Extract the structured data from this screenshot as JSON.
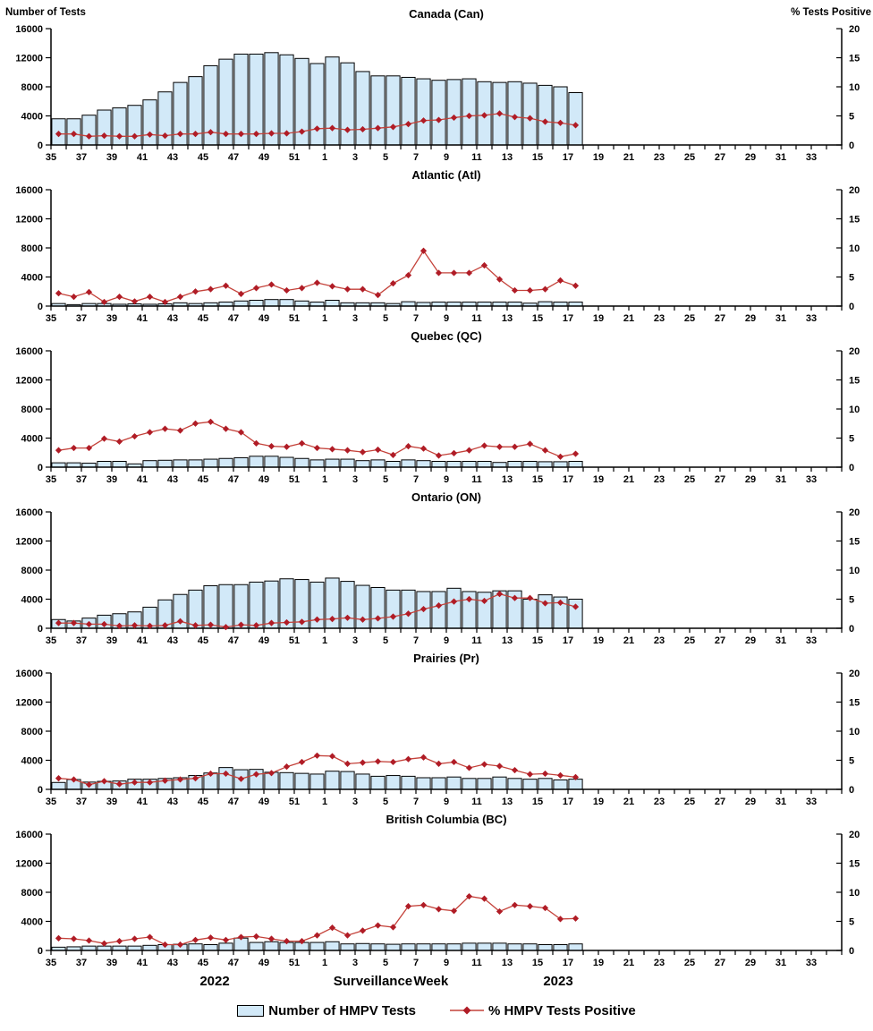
{
  "axis_titles": {
    "left": "Number of Tests",
    "right": "% Tests Positive"
  },
  "footer": {
    "year_left": "2022",
    "axis_label": "Surveillance Week",
    "year_right": "2023"
  },
  "legend": {
    "tests_label": "Number of HMPV Tests",
    "positive_label": "% HMPV Tests Positive"
  },
  "colors": {
    "bar_fill": "#d2e9f8",
    "bar_stroke": "#000000",
    "line": "#c4423a",
    "marker": "#b01c26",
    "axis": "#000000"
  },
  "axes": {
    "left_ticks": [
      "0",
      "4000",
      "8000",
      "12000",
      "16000"
    ],
    "right_ticks": [
      "0",
      "5",
      "10",
      "15",
      "20"
    ],
    "left_range": [
      0,
      16000
    ],
    "right_range": [
      0,
      20
    ],
    "x_tick_labels": [
      "35",
      "37",
      "39",
      "41",
      "43",
      "45",
      "47",
      "49",
      "51",
      "1",
      "3",
      "5",
      "7",
      "9",
      "11",
      "13",
      "15",
      "17",
      "19",
      "21",
      "23",
      "25",
      "27",
      "29",
      "31",
      "33"
    ],
    "x_axis_weeks_span": "week 35 of 2022 through week 34 of 2023",
    "grid": "off",
    "legend_position": "bottom center"
  },
  "chart_data": {
    "type": "bar+line combo, 6 stacked panels, dual y-axes",
    "x_label": "Surveillance Week",
    "left_y_label": "Number of Tests",
    "right_y_label": "% Tests Positive",
    "surveillance_weeks": [
      35,
      36,
      37,
      38,
      39,
      40,
      41,
      42,
      43,
      44,
      45,
      46,
      47,
      48,
      49,
      50,
      51,
      52,
      1,
      2,
      3,
      4,
      5,
      6,
      7,
      8,
      9,
      10,
      11,
      12,
      13,
      14,
      15,
      16,
      17
    ],
    "series_names": [
      "Number of HMPV Tests",
      "% HMPV Tests Positive"
    ],
    "panels": [
      {
        "id": "can",
        "title": "Canada (Can)",
        "tests": [
          3600,
          3600,
          4100,
          4800,
          5100,
          5450,
          6200,
          7300,
          8600,
          9400,
          10900,
          11800,
          12500,
          12500,
          12700,
          12400,
          11900,
          11200,
          12100,
          11300,
          10100,
          9500,
          9500,
          9300,
          9100,
          8900,
          9000,
          9100,
          8700,
          8600,
          8700,
          8500,
          8200,
          8000,
          7200
        ],
        "pct_positive": [
          1.9,
          1.9,
          1.5,
          1.6,
          1.5,
          1.5,
          1.8,
          1.6,
          1.9,
          1.9,
          2.2,
          1.9,
          1.9,
          1.9,
          2.0,
          2.0,
          2.3,
          2.8,
          2.9,
          2.6,
          2.7,
          2.9,
          3.1,
          3.6,
          4.2,
          4.3,
          4.7,
          5.0,
          5.1,
          5.4,
          4.8,
          4.6,
          4.0,
          3.8,
          3.4
        ]
      },
      {
        "id": "atl",
        "title": "Atlantic (Atl)",
        "tests": [
          350,
          200,
          350,
          350,
          250,
          300,
          250,
          300,
          450,
          350,
          450,
          550,
          700,
          800,
          900,
          900,
          700,
          550,
          800,
          450,
          450,
          450,
          350,
          600,
          500,
          550,
          550,
          550,
          550,
          550,
          550,
          400,
          600,
          550,
          550
        ],
        "pct_positive": [
          2.2,
          1.6,
          2.4,
          0.7,
          1.6,
          0.8,
          1.6,
          0.7,
          1.6,
          2.5,
          2.9,
          3.5,
          2.1,
          3.1,
          3.7,
          2.7,
          3.1,
          4.0,
          3.4,
          2.9,
          2.9,
          1.9,
          3.9,
          5.3,
          9.5,
          5.7,
          5.7,
          5.7,
          7.0,
          4.6,
          2.7,
          2.7,
          2.9,
          4.4,
          3.5
        ]
      },
      {
        "id": "qc",
        "title": "Quebec (QC)",
        "tests": [
          600,
          600,
          550,
          800,
          800,
          450,
          900,
          950,
          1000,
          1000,
          1100,
          1200,
          1300,
          1500,
          1500,
          1350,
          1200,
          1000,
          1100,
          1100,
          900,
          1000,
          800,
          1000,
          900,
          800,
          800,
          800,
          800,
          650,
          800,
          800,
          750,
          750,
          800
        ],
        "pct_positive": [
          2.9,
          3.3,
          3.3,
          4.9,
          4.4,
          5.3,
          6.0,
          6.6,
          6.3,
          7.5,
          7.8,
          6.6,
          6.0,
          4.1,
          3.6,
          3.5,
          4.1,
          3.3,
          3.1,
          2.9,
          2.6,
          3.0,
          2.1,
          3.6,
          3.2,
          2.0,
          2.4,
          2.9,
          3.7,
          3.5,
          3.5,
          4.0,
          2.9,
          1.8,
          2.3
        ]
      },
      {
        "id": "on",
        "title": "Ontario (ON)",
        "tests": [
          1200,
          1000,
          1400,
          1800,
          2000,
          2250,
          2900,
          3900,
          4650,
          5250,
          5850,
          6000,
          6000,
          6350,
          6500,
          6800,
          6700,
          6350,
          6900,
          6450,
          5900,
          5600,
          5250,
          5250,
          5050,
          5050,
          5500,
          5050,
          4950,
          5150,
          5150,
          4000,
          4600,
          4300,
          4000
        ],
        "pct_positive": [
          0.9,
          0.9,
          0.7,
          0.7,
          0.4,
          0.5,
          0.4,
          0.5,
          1.2,
          0.5,
          0.6,
          0.2,
          0.6,
          0.5,
          0.9,
          1.0,
          1.1,
          1.5,
          1.6,
          1.8,
          1.5,
          1.7,
          2.0,
          2.5,
          3.3,
          3.9,
          4.6,
          5.0,
          4.7,
          5.9,
          5.2,
          5.2,
          4.3,
          4.4,
          3.7
        ]
      },
      {
        "id": "pr",
        "title": "Prairies (Pr)",
        "tests": [
          950,
          1350,
          1000,
          1100,
          1150,
          1400,
          1400,
          1500,
          1600,
          1900,
          2250,
          3000,
          2700,
          2750,
          2350,
          2300,
          2200,
          2100,
          2500,
          2450,
          2100,
          1800,
          1900,
          1800,
          1600,
          1600,
          1700,
          1500,
          1500,
          1700,
          1500,
          1400,
          1500,
          1300,
          1400
        ],
        "pct_positive": [
          1.9,
          1.7,
          0.8,
          1.4,
          0.9,
          1.2,
          1.2,
          1.5,
          1.7,
          1.9,
          2.7,
          2.7,
          1.8,
          2.6,
          2.8,
          3.9,
          4.7,
          5.8,
          5.7,
          4.4,
          4.6,
          4.8,
          4.7,
          5.2,
          5.5,
          4.4,
          4.7,
          3.7,
          4.3,
          4.0,
          3.3,
          2.6,
          2.7,
          2.4,
          2.1
        ]
      },
      {
        "id": "bc",
        "title": "British Columbia (BC)",
        "tests": [
          450,
          500,
          600,
          600,
          600,
          600,
          700,
          800,
          850,
          900,
          800,
          1000,
          1700,
          1100,
          1200,
          1100,
          1100,
          1100,
          1200,
          900,
          950,
          900,
          850,
          900,
          900,
          900,
          900,
          1000,
          1000,
          1000,
          900,
          900,
          800,
          800,
          900
        ],
        "pct_positive": [
          2.1,
          2.0,
          1.7,
          1.2,
          1.6,
          2.0,
          2.3,
          1.0,
          1.0,
          1.8,
          2.2,
          1.8,
          2.3,
          2.4,
          2.0,
          1.6,
          1.6,
          2.6,
          3.9,
          2.6,
          3.4,
          4.3,
          4.0,
          7.6,
          7.8,
          7.1,
          6.8,
          9.3,
          8.9,
          6.7,
          7.8,
          7.6,
          7.3,
          5.4,
          5.5
        ]
      }
    ]
  }
}
